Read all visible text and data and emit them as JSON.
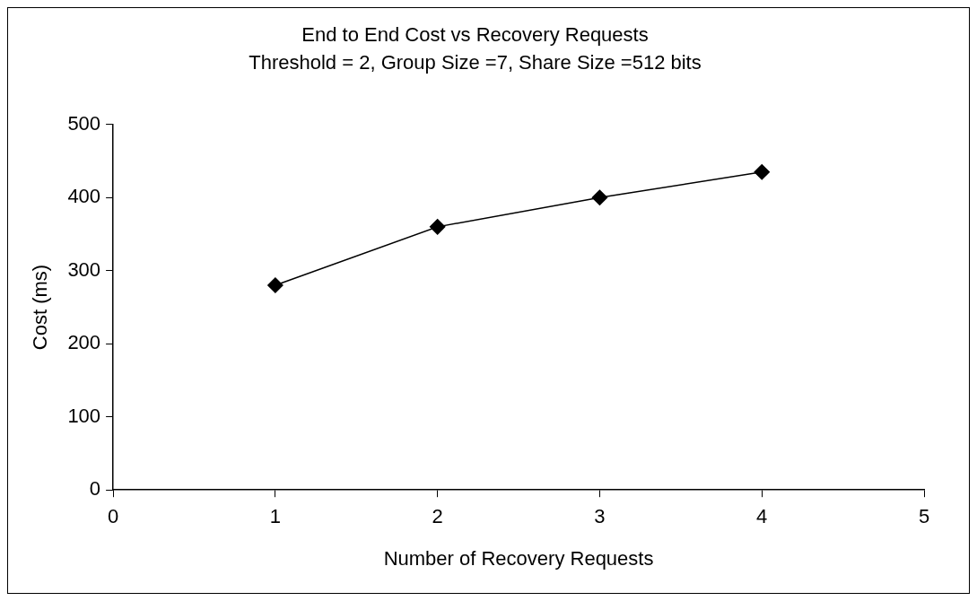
{
  "chart_data": {
    "type": "line",
    "title": "End to End Cost vs Recovery Requests",
    "subtitle": "Threshold = 2, Group Size =7, Share Size =512 bits",
    "xlabel": "Number of Recovery Requests",
    "ylabel": "Cost (ms)",
    "x": [
      1,
      2,
      3,
      4
    ],
    "series": [
      {
        "color": "#000000",
        "values": [
          280,
          360,
          400,
          435
        ]
      }
    ],
    "xlim": [
      0,
      5
    ],
    "xticks": [
      0,
      1,
      2,
      3,
      4,
      5
    ],
    "ylim": [
      0,
      500
    ],
    "yticks": [
      0,
      100,
      200,
      300,
      400,
      500
    ],
    "grid": false,
    "legend": false,
    "marker": "diamond",
    "line_style": "solid"
  }
}
